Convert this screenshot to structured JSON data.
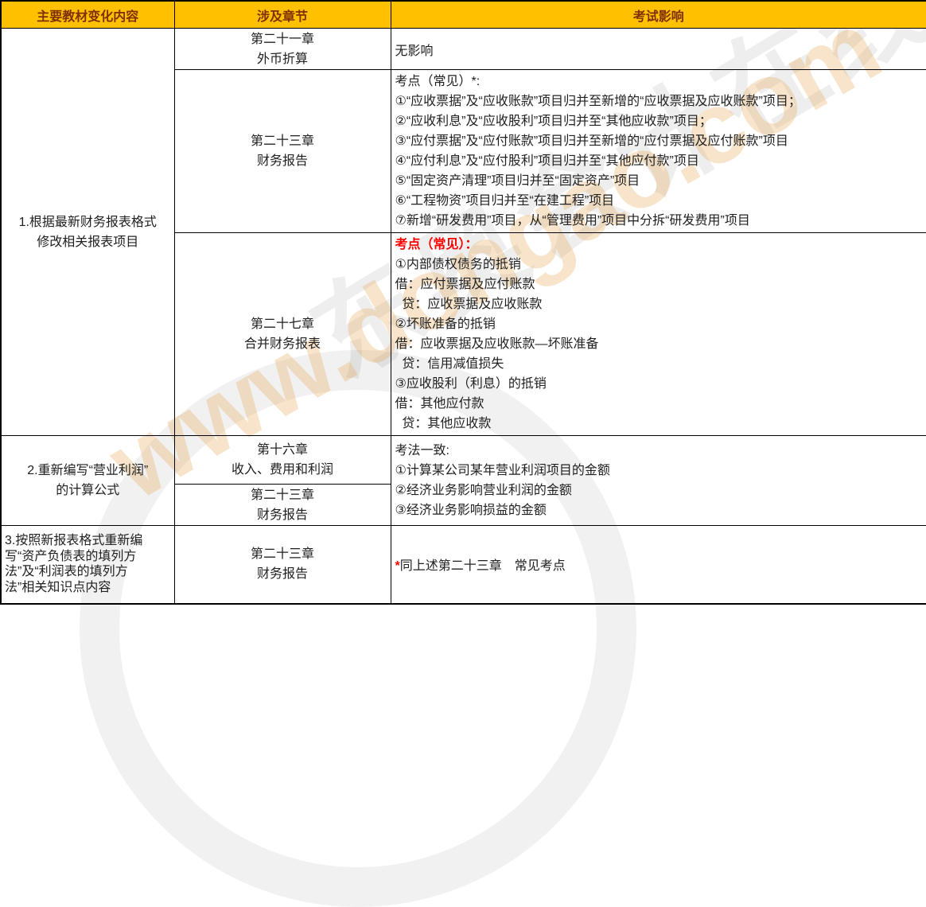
{
  "colors": {
    "header_bg": "#FFC000",
    "header_text": "#7F3000",
    "highlight_red": "#FF0000",
    "border": "#000000"
  },
  "header": {
    "content": "主要教材变化内容",
    "chapters": "涉及章节",
    "impact": "考试影响"
  },
  "row1": {
    "title": "1.根据最新财务报表格式\n修改相关报表项目",
    "ch21": "第二十一章\n外币折算",
    "ch21_impact": "无影响",
    "ch23": "第二十三章\n财务报告",
    "ch23_impact_heading": "考点（常见）*:",
    "ch23_impact_body": "①“应收票据”及“应收账款”项目归并至新增的“应收票据及应收账款”项目；\n②“应收利息”及“应收股利”项目归并至“其他应收款”项目；\n③“应付票据”及“应付账款”项目归并至新增的“应付票据及应付账款”项目\n④“应付利息”及“应付股利”项目归并至“其他应付款”项目\n⑤“固定资产清理”项目归并至“固定资产”项目\n⑥“工程物资”项目归并至“在建工程”项目\n⑦新增“研发费用”项目，从“管理费用”项目中分拆“研发费用”项目",
    "ch27": "第二十七章\n合并财务报表",
    "ch27_impact_heading": "考点（常见）：",
    "ch27_impact_body": "①内部债权债务的抵销\n借：应付票据及应付账款\n  贷：应收票据及应收账款\n②坏账准备的抵销\n借：应收票据及应收账款—坏账准备\n  贷：信用减值损失\n③应收股利（利息）的抵销\n借：其他应付款\n  贷：其他应收款"
  },
  "row2": {
    "title": "2.重新编写“营业利润”\n的计算公式",
    "ch16": "第十六章\n收入、费用和利润",
    "ch23": "第二十三章\n财务报告",
    "impact": "考法一致:\n①计算某公司某年营业利润项目的金额\n②经济业务影响营业利润的金额\n③经济业务影响损益的金额"
  },
  "row3": {
    "title": "3.按照新报表格式重新编\n写“资产负债表的填列方\n法”及“利润表的填列方\n法”相关知识点内容",
    "ch23": "第二十三章\n财务报告",
    "impact_star": "*",
    "impact_text": "同上述第二十三章　常见考点"
  },
  "watermark": {
    "brand_cn": "东奥会计在线",
    "brand_url": "www.dongao.com"
  }
}
